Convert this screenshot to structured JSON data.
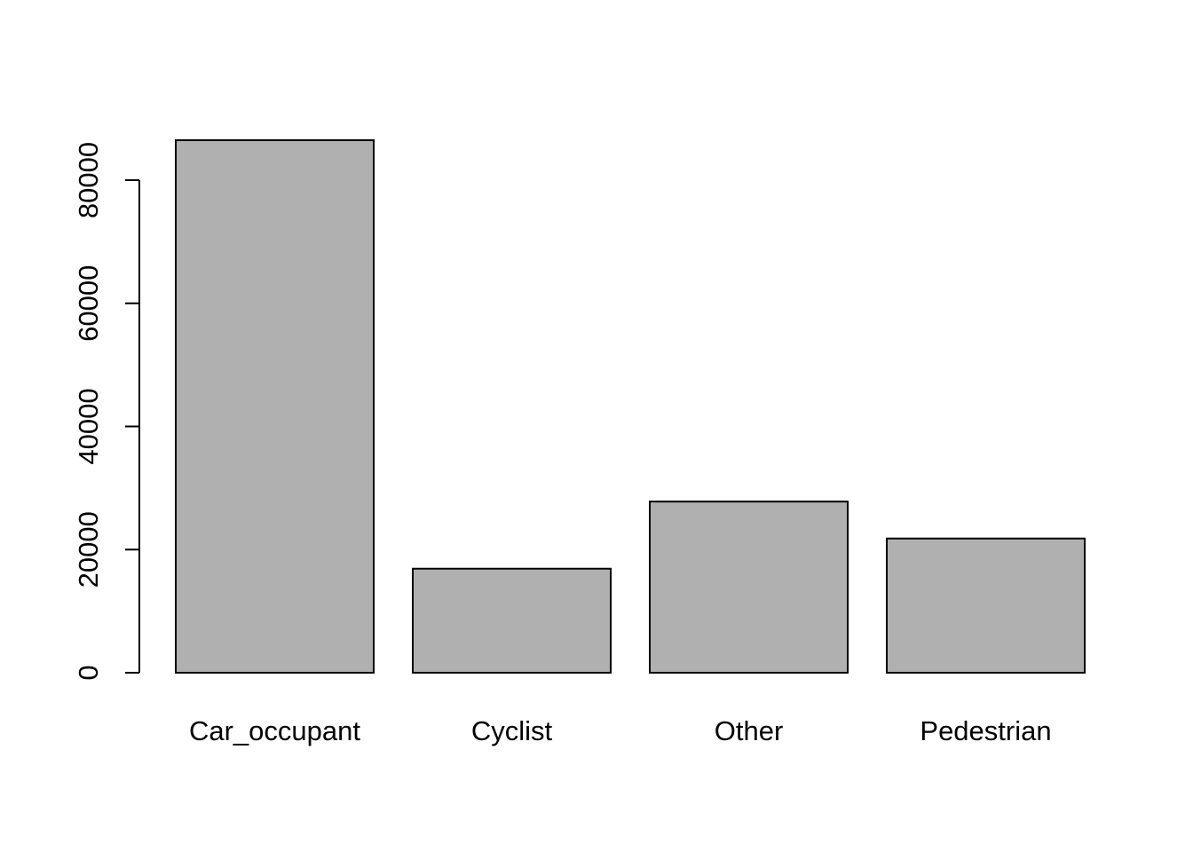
{
  "chart_data": {
    "type": "bar",
    "title": "",
    "xlabel": "",
    "ylabel": "",
    "categories": [
      "Car_occupant",
      "Cyclist",
      "Other",
      "Pedestrian"
    ],
    "values": [
      86500,
      16900,
      27800,
      21800
    ],
    "ylim": [
      0,
      86500
    ],
    "yticks": [
      0,
      20000,
      40000,
      60000,
      80000
    ],
    "ytick_labels": [
      "0",
      "20000",
      "40000",
      "60000",
      "80000"
    ],
    "bar_color": "#b0b0b0",
    "border_color": "#000000",
    "grid": false,
    "legend": "none"
  }
}
